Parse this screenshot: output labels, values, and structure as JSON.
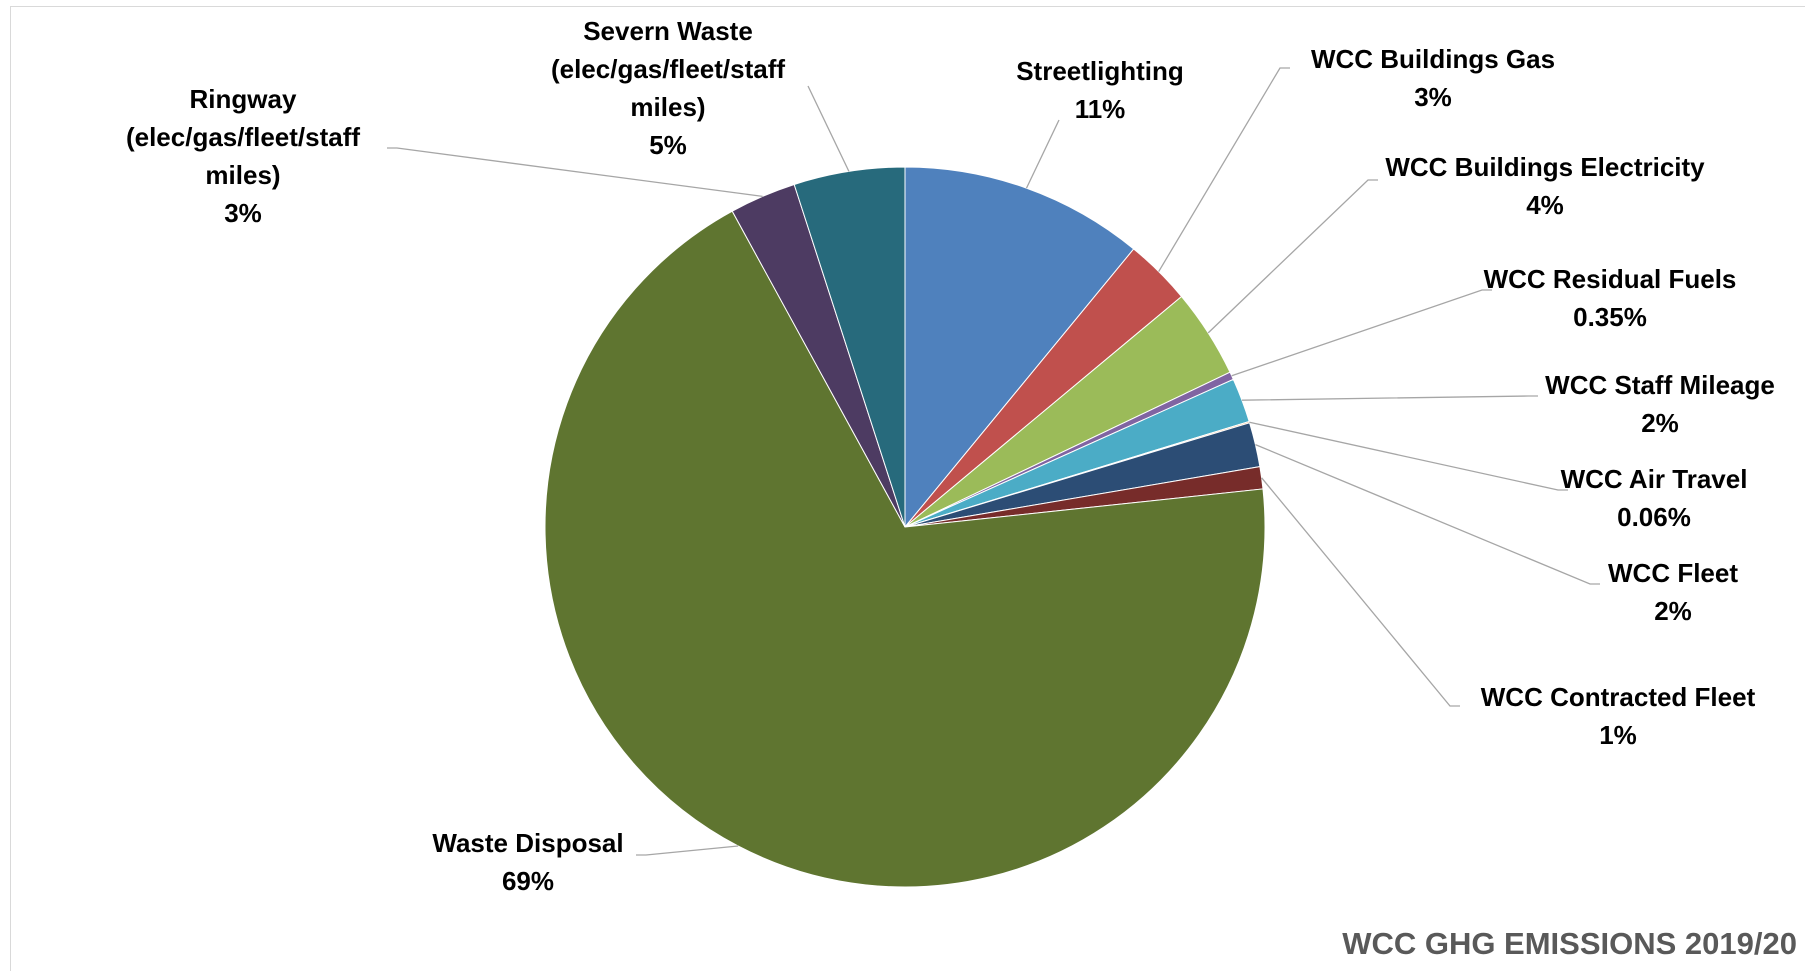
{
  "chart_data": {
    "type": "pie",
    "title": "WCC GHG EMISSIONS 2019/20",
    "legend": "none",
    "slices": [
      {
        "label": "Streetlighting",
        "value": 11,
        "display": "11%",
        "color": "#4f81bd"
      },
      {
        "label": "WCC Buildings Gas",
        "value": 3,
        "display": "3%",
        "color": "#c0504d"
      },
      {
        "label": "WCC Buildings Electricity",
        "value": 4,
        "display": "4%",
        "color": "#9bbb59"
      },
      {
        "label": "WCC Residual Fuels",
        "value": 0.35,
        "display": "0.35%",
        "color": "#8064a2"
      },
      {
        "label": "WCC Staff Mileage",
        "value": 2,
        "display": "2%",
        "color": "#4bacc6"
      },
      {
        "label": "WCC Air Travel",
        "value": 0.06,
        "display": "0.06%",
        "color": "#f79646"
      },
      {
        "label": "WCC Fleet",
        "value": 2,
        "display": "2%",
        "color": "#2c4d75"
      },
      {
        "label": "WCC Contracted Fleet",
        "value": 1,
        "display": "1%",
        "color": "#772c2a"
      },
      {
        "label": "Waste Disposal",
        "value": 69,
        "display": "69%",
        "color": "#5f7530"
      },
      {
        "label": "Ringway (elec/gas/fleet/staff miles)",
        "value": 3,
        "display": "3%",
        "color": "#4d3b62"
      },
      {
        "label": "Severn Waste (elec/gas/fleet/staff miles)",
        "value": 5,
        "display": "5%",
        "color": "#276a7c"
      }
    ]
  }
}
